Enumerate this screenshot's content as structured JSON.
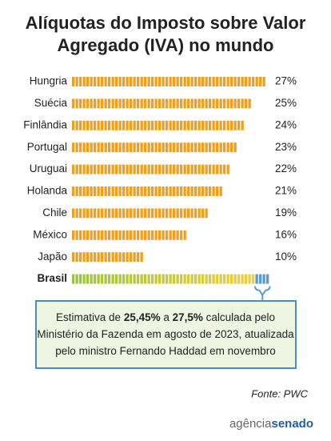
{
  "chart_data": {
    "type": "bar",
    "orientation": "horizontal",
    "title": [
      "Alíquotas do Imposto sobre Valor",
      "Agregado (IVA) no mundo"
    ],
    "categories": [
      "Hungria",
      "Suécia",
      "Finlândia",
      "Portugal",
      "Uruguai",
      "Holanda",
      "Chile",
      "México",
      "Japão",
      "Brasil"
    ],
    "values": [
      27,
      25,
      24,
      23,
      22,
      21,
      19,
      16,
      10,
      25.45
    ],
    "value_labels": [
      "27%",
      "25%",
      "24%",
      "23%",
      "22%",
      "21%",
      "19%",
      "16%",
      "10%",
      null
    ],
    "estimate_range": [
      25.45,
      27.5
    ],
    "color": "#f0a020",
    "highlight_colors": [
      "#9cc43c",
      "#f2cf3a"
    ],
    "estimate_color": "#5b9bd5",
    "xlim": [
      0,
      28
    ],
    "annotation": [
      [
        "Estimativa de ",
        "25,45%",
        " a ",
        "27,5%",
        " calculada pelo"
      ],
      [
        "Ministério da Fazenda em agosto de 2023, atualizada"
      ],
      [
        "pelo ministro Fernando Haddad em novembro"
      ]
    ],
    "source": "Fonte: PWC",
    "logo": [
      "agência",
      "senado"
    ]
  }
}
